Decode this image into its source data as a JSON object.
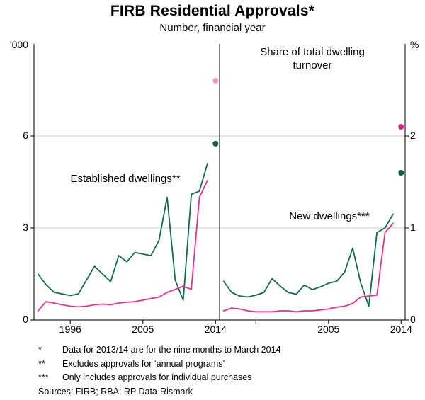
{
  "header": {
    "title": "FIRB Residential Approvals*",
    "subtitle": "Number, financial year"
  },
  "axes": {
    "left_unit": "’000",
    "right_unit": "%"
  },
  "annotations": {
    "established_label": "Established dwellings**",
    "new_label": "New dwellings***"
  },
  "colors": {
    "established": "#136A4F",
    "new": "#E8308A",
    "grid": "#C9C9C9",
    "axis": "#2B2B2B",
    "text": "#000000"
  },
  "chart_data": [
    {
      "type": "line",
      "panel": "left",
      "title": "Number, financial year",
      "ylabel": "’000",
      "ylim": [
        0,
        9
      ],
      "yticks": [
        0,
        3,
        6
      ],
      "grid": "horizontal",
      "legend_position": "none",
      "x": [
        1992,
        1993,
        1994,
        1995,
        1996,
        1997,
        1998,
        1999,
        2000,
        2001,
        2002,
        2003,
        2004,
        2005,
        2006,
        2007,
        2008,
        2009,
        2010,
        2011,
        2012,
        2013
      ],
      "x_tick_marks": [
        1996,
        2005,
        2014
      ],
      "x_tick_labels": [
        {
          "year": 1996,
          "label": "1996"
        },
        {
          "year": 2005,
          "label": "2005"
        },
        {
          "year": 2014,
          "label": "2014"
        }
      ],
      "series": [
        {
          "name": "Established dwellings",
          "color_key": "established",
          "values": [
            1.5,
            1.15,
            0.9,
            0.85,
            0.8,
            0.85,
            1.3,
            1.75,
            1.5,
            1.25,
            2.1,
            1.9,
            2.2,
            2.15,
            2.1,
            2.6,
            4.0,
            1.3,
            0.65,
            4.1,
            4.2,
            5.1
          ]
        },
        {
          "name": "New dwellings",
          "color_key": "new",
          "values": [
            0.3,
            0.6,
            0.55,
            0.5,
            0.45,
            0.43,
            0.45,
            0.5,
            0.52,
            0.5,
            0.55,
            0.58,
            0.6,
            0.65,
            0.7,
            0.75,
            0.9,
            1.0,
            1.1,
            1.0,
            4.0,
            4.55
          ]
        }
      ],
      "dots": [
        {
          "name": "New dwellings 2013/14",
          "year": 2014,
          "value": 7.8,
          "color": "#F397C1"
        },
        {
          "name": "Established dwellings 2013/14",
          "year": 2014,
          "value": 5.75,
          "color": "#0E5F49"
        }
      ]
    },
    {
      "type": "line",
      "panel": "right",
      "title": "Share of total dwelling turnover",
      "ylabel": "%",
      "ylim": [
        0,
        3
      ],
      "yticks": [
        0,
        1,
        2
      ],
      "grid": "horizontal",
      "legend_position": "none",
      "x": [
        1992,
        1993,
        1994,
        1995,
        1996,
        1997,
        1998,
        1999,
        2000,
        2001,
        2002,
        2003,
        2004,
        2005,
        2006,
        2007,
        2008,
        2009,
        2010,
        2011,
        2012,
        2013
      ],
      "x_tick_marks": [
        1996,
        2005,
        2014
      ],
      "x_tick_labels": [
        {
          "year": 2005,
          "label": "2005"
        },
        {
          "year": 2014,
          "label": "2014"
        }
      ],
      "series": [
        {
          "name": "Established dwellings",
          "color_key": "established",
          "values": [
            0.42,
            0.3,
            0.26,
            0.25,
            0.27,
            0.3,
            0.45,
            0.37,
            0.3,
            0.28,
            0.38,
            0.33,
            0.36,
            0.4,
            0.42,
            0.52,
            0.78,
            0.4,
            0.15,
            0.95,
            1.0,
            1.15
          ]
        },
        {
          "name": "New dwellings",
          "color_key": "new",
          "values": [
            0.1,
            0.13,
            0.12,
            0.1,
            0.09,
            0.09,
            0.09,
            0.1,
            0.1,
            0.09,
            0.1,
            0.1,
            0.11,
            0.12,
            0.14,
            0.15,
            0.18,
            0.25,
            0.26,
            0.27,
            0.95,
            1.05
          ]
        }
      ],
      "dots": [
        {
          "name": "New dwellings 2013/14",
          "year": 2014,
          "value": 2.1,
          "color": "#E0218A"
        },
        {
          "name": "Established dwellings 2013/14",
          "year": 2014,
          "value": 1.6,
          "color": "#0E5F49"
        }
      ]
    }
  ],
  "footnotes": [
    {
      "marker": "*",
      "text": "Data for 2013/14 are for the nine months to March 2014"
    },
    {
      "marker": "**",
      "text": "Excludes approvals for ‘annual programs’"
    },
    {
      "marker": "***",
      "text": "Only includes approvals for individual purchases"
    }
  ],
  "sources": "Sources: FIRB; RBA; RP Data-Rismark"
}
